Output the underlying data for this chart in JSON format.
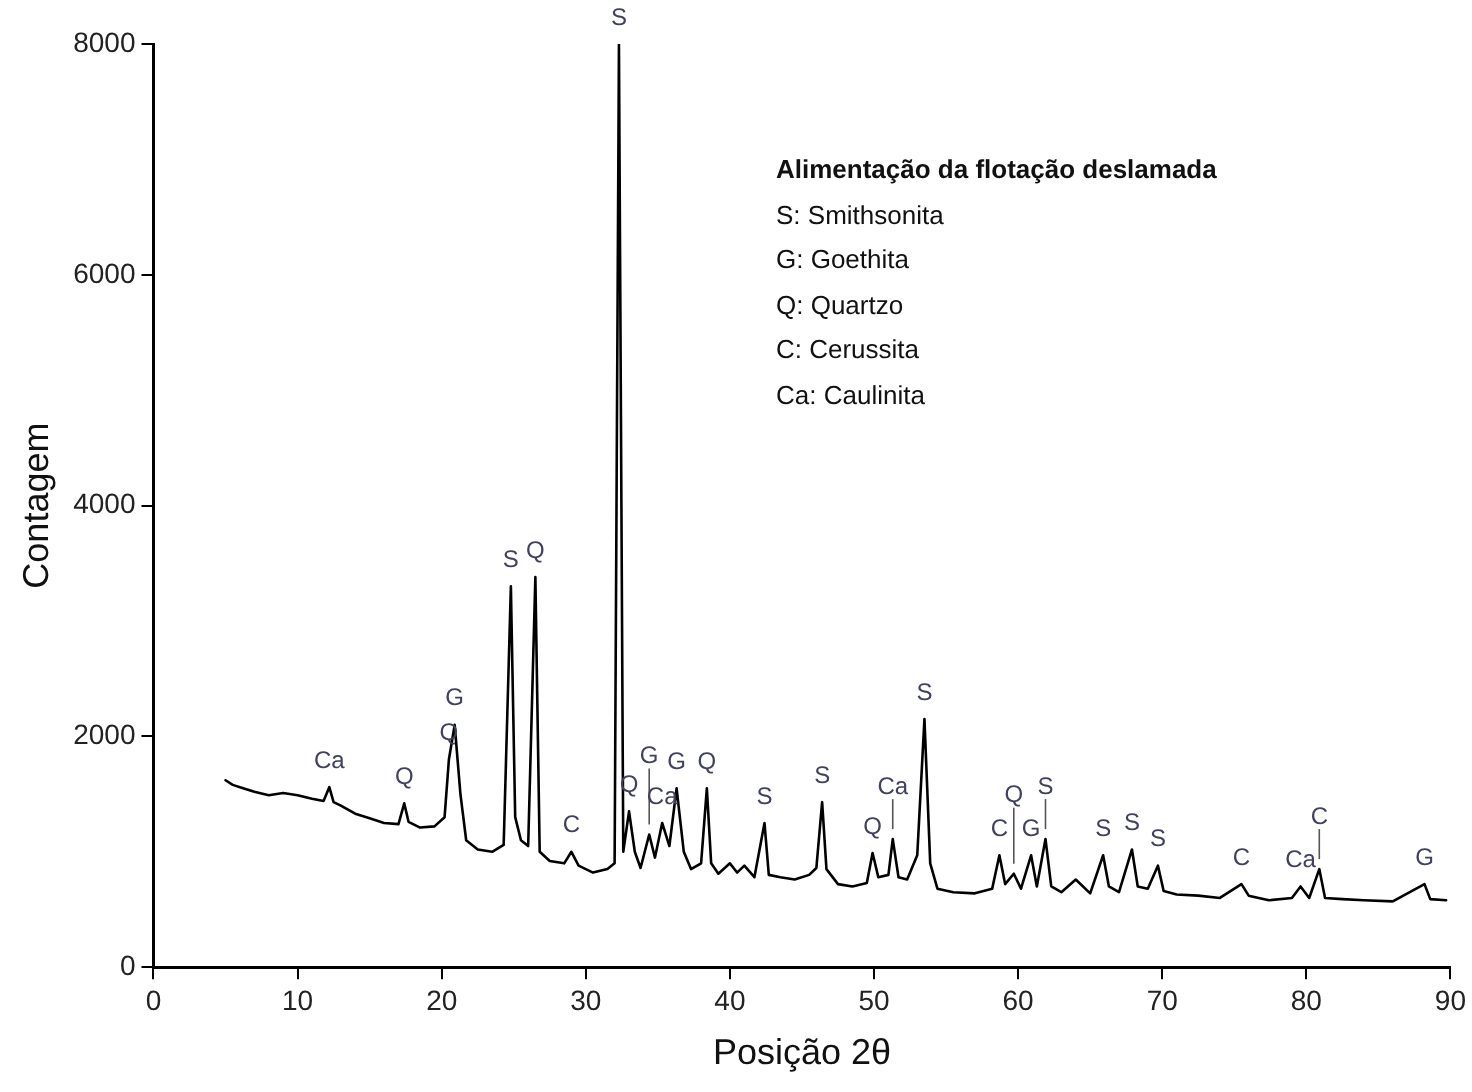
{
  "chart_data": {
    "type": "line",
    "xlabel": "Posição 2θ",
    "ylabel": "Contagem",
    "xlim": [
      0,
      90
    ],
    "xticks": [
      0,
      10,
      20,
      30,
      40,
      50,
      60,
      70,
      80,
      90
    ],
    "ylim": [
      0,
      8000
    ],
    "yticks": [
      0,
      2000,
      4000,
      6000,
      8000
    ],
    "grid": false,
    "legend": false,
    "marker": "none",
    "line_style": "solid",
    "series": [
      {
        "color": "#000000",
        "x": [
          5,
          5.5,
          6,
          7,
          8,
          9,
          10,
          11,
          11.8,
          12.2,
          12.5,
          13,
          14,
          15,
          16,
          17,
          17.4,
          17.7,
          18.5,
          19.5,
          20.2,
          20.5,
          20.9,
          21.3,
          21.7,
          22.5,
          23.5,
          24.3,
          24.8,
          25.1,
          25.5,
          26,
          26.5,
          26.8,
          27.5,
          28.5,
          29,
          29.5,
          30.5,
          31.5,
          32,
          32.3,
          32.6,
          33,
          33.4,
          33.8,
          34.4,
          34.8,
          35.3,
          35.8,
          36.3,
          36.8,
          37.3,
          38,
          38.4,
          38.7,
          39.2,
          40,
          40.5,
          41,
          41.7,
          42.4,
          42.7,
          43.5,
          44.5,
          45.5,
          46,
          46.4,
          46.7,
          47.5,
          48.5,
          49.5,
          49.9,
          50.3,
          51,
          51.3,
          51.7,
          52.3,
          53,
          53.5,
          53.9,
          54.4,
          55.5,
          57,
          58.2,
          58.7,
          59.1,
          59.7,
          60.2,
          60.9,
          61.3,
          61.9,
          62.3,
          63,
          64,
          65,
          65.9,
          66.3,
          67,
          67.9,
          68.3,
          69,
          69.7,
          70.1,
          71,
          72.5,
          74,
          75.5,
          76,
          77.4,
          79,
          79.6,
          80.2,
          80.9,
          81.3,
          82.5,
          84,
          86,
          88.2,
          88.6,
          89.7
        ],
        "values": [
          1620,
          1580,
          1560,
          1520,
          1490,
          1510,
          1490,
          1460,
          1440,
          1560,
          1430,
          1400,
          1330,
          1290,
          1250,
          1240,
          1420,
          1260,
          1210,
          1220,
          1300,
          1800,
          2100,
          1500,
          1100,
          1020,
          1000,
          1060,
          3300,
          1300,
          1100,
          1050,
          3380,
          1000,
          920,
          900,
          1000,
          880,
          820,
          850,
          900,
          8000,
          1000,
          1350,
          1000,
          860,
          1150,
          950,
          1250,
          1050,
          1550,
          1000,
          850,
          900,
          1550,
          900,
          810,
          900,
          820,
          880,
          780,
          1250,
          800,
          780,
          760,
          800,
          860,
          1430,
          850,
          720,
          700,
          730,
          990,
          780,
          800,
          1110,
          780,
          760,
          970,
          2150,
          900,
          680,
          650,
          640,
          680,
          970,
          720,
          810,
          680,
          970,
          700,
          1110,
          700,
          650,
          760,
          640,
          970,
          700,
          650,
          1020,
          700,
          680,
          880,
          660,
          630,
          620,
          600,
          720,
          620,
          580,
          600,
          700,
          600,
          850,
          600,
          590,
          580,
          570,
          720,
          590,
          580
        ]
      }
    ],
    "annotations": [
      "Alimentação da flotação deslamada",
      "S:   Smithsonita",
      "G:   Goethita",
      "Q:   Quartzo",
      "C:   Cerussita",
      "Ca: Caulinita",
      {
        "text": "Ca",
        "x": 12.2,
        "y": 1560
      },
      {
        "text": "Q",
        "x": 17.4,
        "y": 1420
      },
      {
        "text": "Q",
        "x": 20.5,
        "y": 1800
      },
      {
        "text": "G",
        "x": 20.9,
        "y": 2100
      },
      {
        "text": "S",
        "x": 24.8,
        "y": 3300
      },
      {
        "text": "Q",
        "x": 26.5,
        "y": 3380
      },
      {
        "text": "C",
        "x": 29,
        "y": 1000
      },
      {
        "text": "S",
        "x": 32.3,
        "y": 8000
      },
      {
        "text": "Q",
        "x": 33,
        "y": 1350
      },
      {
        "text": "G",
        "x": 34.4,
        "y": 1150
      },
      {
        "text": "Ca",
        "x": 35.3,
        "y": 1250
      },
      {
        "text": "G",
        "x": 36.3,
        "y": 1550
      },
      {
        "text": "Q",
        "x": 38.4,
        "y": 1550
      },
      {
        "text": "S",
        "x": 42.4,
        "y": 1250
      },
      {
        "text": "S",
        "x": 46.4,
        "y": 1430
      },
      {
        "text": "Q",
        "x": 49.9,
        "y": 990
      },
      {
        "text": "Ca",
        "x": 51.3,
        "y": 1110
      },
      {
        "text": "S",
        "x": 53.5,
        "y": 2150
      },
      {
        "text": "C",
        "x": 58.7,
        "y": 970
      },
      {
        "text": "Q",
        "x": 59.7,
        "y": 810
      },
      {
        "text": "G",
        "x": 60.9,
        "y": 970
      },
      {
        "text": "S",
        "x": 61.9,
        "y": 1110
      },
      {
        "text": "S",
        "x": 65.9,
        "y": 970
      },
      {
        "text": "S",
        "x": 67.9,
        "y": 1020
      },
      {
        "text": "S",
        "x": 69.7,
        "y": 880
      },
      {
        "text": "C",
        "x": 75.5,
        "y": 720
      },
      {
        "text": "Ca",
        "x": 79.6,
        "y": 700
      },
      {
        "text": "C",
        "x": 80.9,
        "y": 850
      },
      {
        "text": "G",
        "x": 88.2,
        "y": 720
      }
    ]
  }
}
